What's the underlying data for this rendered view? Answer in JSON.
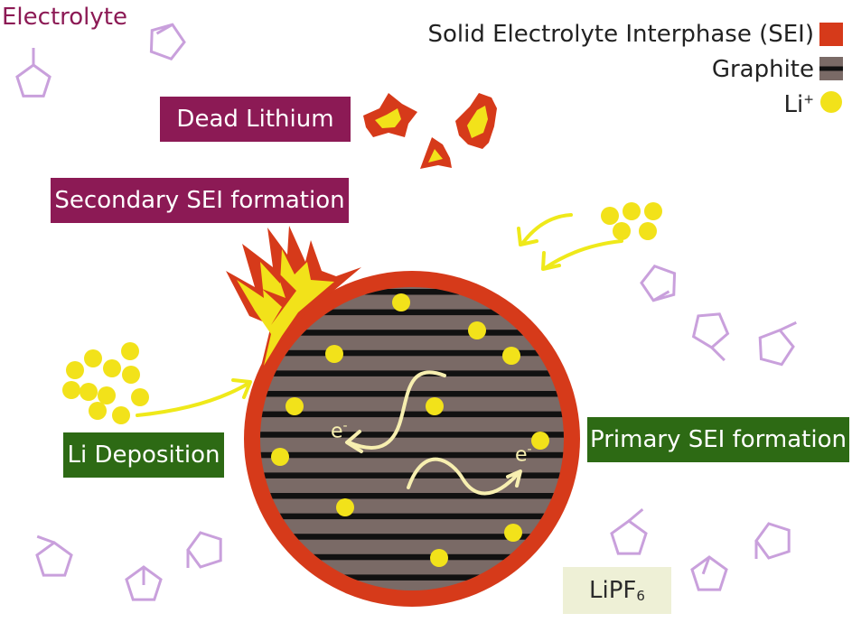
{
  "labels": {
    "electrolyte": "Electrolyte",
    "dead_lithium": "Dead Lithium",
    "secondary_sei": "Secondary SEI formation",
    "li_deposition": "Li Deposition",
    "primary_sei": "Primary SEI formation",
    "lipf6_base": "LiPF",
    "lipf6_sub": "6",
    "electron_left": "e",
    "electron_right": "e",
    "electron_sup": "-"
  },
  "legend": [
    {
      "text": "Solid Electrolyte Interphase (SEI)",
      "swatch": "sei"
    },
    {
      "text": "Graphite",
      "swatch": "graphite"
    },
    {
      "text": "Li",
      "sup": "+",
      "swatch": "li"
    }
  ],
  "colors": {
    "sei": "#d63a1a",
    "graphite": "#7a6a66",
    "graphite_stripe": "#111111",
    "li_ion": "#f2e21a",
    "arrow": "#efe91a",
    "electron_path": "#f7efb0",
    "solvent": "#c9a0dc",
    "label_maroon": "#8c1a55",
    "label_green": "#2d6a14",
    "electrolyte_text": "#8c1a55"
  },
  "icons": [
    "solvent-molecule-icon",
    "li-ion-icon",
    "arrow-icon",
    "electron-icon"
  ]
}
